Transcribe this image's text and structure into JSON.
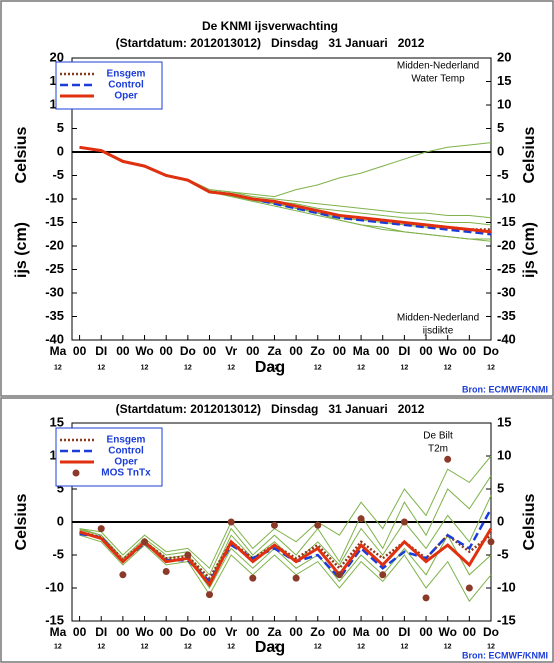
{
  "chart_data": [
    {
      "type": "line",
      "title": "De KNMI ijsverwachting",
      "subtitle": "(Startdatum: 2012013012)   Dinsdag   31 Januari   2012",
      "ylabel": "ijs (cm)",
      "ylabel_extra": "Celsius",
      "y2label": "ijs (cm)",
      "y2label_extra": "Celsius",
      "xlabel": "Dag",
      "annotation_top": [
        "Midden-Nederland",
        "Water Temp"
      ],
      "annotation_bottom": [
        "Midden-Nederland",
        "ijsdikte"
      ],
      "source": "Bron: ECMWF/KNMI",
      "xlim": [
        0.65,
        20
      ],
      "xticks": [
        {
          "value": 0,
          "label": "Ma"
        },
        {
          "value": 1,
          "label": "00"
        },
        {
          "value": 2,
          "label": "DI"
        },
        {
          "value": 3,
          "label": "00"
        },
        {
          "value": 4,
          "label": "Wo"
        },
        {
          "value": 5,
          "label": "00"
        },
        {
          "value": 6,
          "label": "Do"
        },
        {
          "value": 7,
          "label": "00"
        },
        {
          "value": 8,
          "label": "Vr"
        },
        {
          "value": 9,
          "label": "00"
        },
        {
          "value": 10,
          "label": "Za"
        },
        {
          "value": 11,
          "label": "00"
        },
        {
          "value": 12,
          "label": "Zo"
        },
        {
          "value": 13,
          "label": "00"
        },
        {
          "value": 14,
          "label": "Ma"
        },
        {
          "value": 15,
          "label": "00"
        },
        {
          "value": 16,
          "label": "DI"
        },
        {
          "value": 17,
          "label": "00"
        },
        {
          "value": 18,
          "label": "Wo"
        },
        {
          "value": 19,
          "label": "00"
        },
        {
          "value": 20,
          "label": "Do"
        }
      ],
      "x_hour_labels": [
        {
          "value": 0,
          "label": "12"
        },
        {
          "value": 2,
          "label": "12"
        },
        {
          "value": 4,
          "label": "12"
        },
        {
          "value": 6,
          "label": "12"
        },
        {
          "value": 8,
          "label": "12"
        },
        {
          "value": 10,
          "label": "12"
        },
        {
          "value": 12,
          "label": "12"
        },
        {
          "value": 14,
          "label": "12"
        },
        {
          "value": 16,
          "label": "12"
        },
        {
          "value": 18,
          "label": "12"
        },
        {
          "value": 20,
          "label": "12"
        }
      ],
      "ylim": [
        -40,
        20
      ],
      "yticks": [
        20,
        15,
        10,
        5,
        0,
        -5,
        -10,
        -15,
        -20,
        -25,
        -30,
        -35,
        -40
      ],
      "y2lim": [
        -40,
        20
      ],
      "y2ticks": [
        20,
        15,
        10,
        5,
        0,
        -5,
        -10,
        -15,
        -20,
        -25,
        -30,
        -35,
        -40
      ],
      "x": [
        1,
        2,
        3,
        4,
        5,
        6,
        7,
        8,
        9,
        10,
        11,
        12,
        13,
        14,
        15,
        16,
        17,
        18,
        19,
        20
      ],
      "ensemble_color": "#7fb24a",
      "ensemble": [
        [
          1,
          0.3,
          -2,
          -3,
          -5,
          -6,
          -8,
          -8.5,
          -9,
          -9.5,
          -8,
          -7,
          -5.5,
          -4.5,
          -3,
          -1.5,
          0,
          1,
          1.5,
          2
        ],
        [
          1,
          0.3,
          -2.2,
          -3,
          -5,
          -6.2,
          -8.5,
          -9.5,
          -10.5,
          -11.5,
          -12.5,
          -13.5,
          -14.5,
          -15.5,
          -16.5,
          -17,
          -17.5,
          -18,
          -18.5,
          -19
        ],
        [
          1,
          0.3,
          -1.8,
          -2.8,
          -4.8,
          -5.8,
          -8,
          -8.5,
          -9.5,
          -10,
          -10.5,
          -11,
          -11.5,
          -12,
          -12.5,
          -13,
          -13,
          -13.5,
          -13.5,
          -14
        ],
        [
          1,
          0.2,
          -2,
          -3.2,
          -5.2,
          -6,
          -8.7,
          -9.2,
          -10,
          -11,
          -12,
          -13,
          -14,
          -14.5,
          -15,
          -15.5,
          -16,
          -16.2,
          -16.5,
          -16.8
        ],
        [
          1,
          0.3,
          -2,
          -3,
          -5,
          -6,
          -8.3,
          -8.8,
          -9.8,
          -10.5,
          -11,
          -12,
          -12.5,
          -13,
          -13.5,
          -14,
          -14.5,
          -15,
          -15,
          -15.5
        ],
        [
          1,
          0.3,
          -2.1,
          -3.1,
          -5.1,
          -6.1,
          -8.6,
          -9.3,
          -10.3,
          -11,
          -12,
          -13,
          -14.5,
          -15.5,
          -16,
          -17,
          -17.5,
          -18,
          -18.5,
          -18.5
        ]
      ],
      "series": [
        {
          "name": "Ensgem",
          "color": "#8b3a1a",
          "style": "dotted",
          "values": [
            1,
            0.3,
            -2,
            -3,
            -5,
            -6,
            -8.5,
            -9,
            -10,
            -10.5,
            -11.5,
            -12.5,
            -13.5,
            -14,
            -14.5,
            -15,
            -15.5,
            -16,
            -16.5,
            -16.5
          ]
        },
        {
          "name": "Control",
          "color": "#1a3cd8",
          "style": "dashed",
          "values": [
            1,
            0.3,
            -2,
            -3,
            -5,
            -6,
            -8.5,
            -9,
            -10,
            -11,
            -12,
            -13,
            -14,
            -14.5,
            -15,
            -15.5,
            -16,
            -16.5,
            -17,
            -17.5
          ]
        },
        {
          "name": "Oper",
          "color": "#e03010",
          "style": "solid",
          "values": [
            1,
            0.3,
            -2,
            -3,
            -5,
            -6,
            -8.5,
            -9,
            -10,
            -10.5,
            -11.5,
            -12.5,
            -13.5,
            -14,
            -14.5,
            -15,
            -15.5,
            -16,
            -16.5,
            -17
          ]
        }
      ]
    },
    {
      "type": "line",
      "subtitle": "(Startdatum: 2012013012)   Dinsdag   31 Januari   2012",
      "ylabel": "Celsius",
      "y2label": "Celsius",
      "xlabel": "Dag",
      "annotation_top": [
        "De Bilt",
        "T2m"
      ],
      "source": "Bron: ECMWF/KNMI",
      "xlim": [
        0.65,
        20
      ],
      "xticks": [
        {
          "value": 0,
          "label": "Ma"
        },
        {
          "value": 1,
          "label": "00"
        },
        {
          "value": 2,
          "label": "DI"
        },
        {
          "value": 3,
          "label": "00"
        },
        {
          "value": 4,
          "label": "Wo"
        },
        {
          "value": 5,
          "label": "00"
        },
        {
          "value": 6,
          "label": "Do"
        },
        {
          "value": 7,
          "label": "00"
        },
        {
          "value": 8,
          "label": "Vr"
        },
        {
          "value": 9,
          "label": "00"
        },
        {
          "value": 10,
          "label": "Za"
        },
        {
          "value": 11,
          "label": "00"
        },
        {
          "value": 12,
          "label": "Zo"
        },
        {
          "value": 13,
          "label": "00"
        },
        {
          "value": 14,
          "label": "Ma"
        },
        {
          "value": 15,
          "label": "00"
        },
        {
          "value": 16,
          "label": "DI"
        },
        {
          "value": 17,
          "label": "00"
        },
        {
          "value": 18,
          "label": "Wo"
        },
        {
          "value": 19,
          "label": "00"
        },
        {
          "value": 20,
          "label": "Do"
        }
      ],
      "x_hour_labels": [
        {
          "value": 0,
          "label": "12"
        },
        {
          "value": 2,
          "label": "12"
        },
        {
          "value": 4,
          "label": "12"
        },
        {
          "value": 6,
          "label": "12"
        },
        {
          "value": 8,
          "label": "12"
        },
        {
          "value": 10,
          "label": "12"
        },
        {
          "value": 12,
          "label": "12"
        },
        {
          "value": 14,
          "label": "12"
        },
        {
          "value": 16,
          "label": "12"
        },
        {
          "value": 18,
          "label": "12"
        },
        {
          "value": 20,
          "label": "12"
        }
      ],
      "ylim": [
        -15,
        15
      ],
      "yticks": [
        15,
        10,
        5,
        0,
        -5,
        -10,
        -15
      ],
      "y2lim": [
        -15,
        15
      ],
      "y2ticks": [
        15,
        10,
        5,
        0,
        -5,
        -10,
        -15
      ],
      "x": [
        1,
        2,
        3,
        4,
        5,
        6,
        7,
        8,
        9,
        10,
        11,
        12,
        13,
        14,
        15,
        16,
        17,
        18,
        19,
        20
      ],
      "ensemble_color": "#7fb24a",
      "ensemble": [
        [
          -1,
          -2,
          -5.5,
          -2.5,
          -5,
          -4.5,
          -8,
          -1,
          -5,
          -2,
          -5,
          -1,
          -6,
          1,
          -4,
          3,
          -2,
          5,
          2,
          7
        ],
        [
          -1.5,
          -2.5,
          -6,
          -3,
          -6,
          -5.5,
          -10,
          -4,
          -7,
          -4,
          -7,
          -5,
          -9,
          -5,
          -8,
          -4,
          -8,
          -2,
          -8,
          -5
        ],
        [
          -1.2,
          -2,
          -6,
          -2.8,
          -5.5,
          -5,
          -9,
          -2,
          -5.5,
          -3,
          -6,
          -3,
          -6.5,
          -1,
          -5,
          0,
          -4,
          1,
          -3,
          4
        ],
        [
          -2,
          -3,
          -6.5,
          -3.5,
          -6.5,
          -6,
          -11,
          -5,
          -8,
          -5,
          -8,
          -6,
          -10,
          -6,
          -9,
          -5,
          -10,
          -6,
          -12,
          -8
        ],
        [
          -1,
          -1.5,
          -5,
          -2,
          -4.5,
          -4,
          -7,
          0,
          -4,
          -1,
          -3,
          0,
          -2,
          3,
          -1,
          5,
          1,
          8,
          6,
          10
        ]
      ],
      "series": [
        {
          "name": "Ensgem",
          "color": "#8b3a1a",
          "style": "dotted",
          "values": [
            -1.5,
            -2.3,
            -5.7,
            -3,
            -5.5,
            -5.2,
            -8.5,
            -3,
            -5.5,
            -3.5,
            -5.5,
            -3.5,
            -7,
            -3,
            -5.5,
            -3,
            -5.5,
            -2,
            -4.5,
            -2
          ]
        },
        {
          "name": "Control",
          "color": "#1a3cd8",
          "style": "dashed",
          "values": [
            -1.8,
            -2.3,
            -6,
            -3.2,
            -5.8,
            -5.8,
            -9,
            -3.5,
            -5.5,
            -4,
            -6,
            -5,
            -8.5,
            -4,
            -7,
            -4.5,
            -5.5,
            -2,
            -4,
            2
          ]
        },
        {
          "name": "Oper",
          "color": "#e03010",
          "style": "solid",
          "values": [
            -1.5,
            -2.5,
            -6,
            -3,
            -6,
            -5.5,
            -9.5,
            -3,
            -6,
            -3.5,
            -6,
            -4,
            -8,
            -3.5,
            -6.5,
            -3,
            -6,
            -3.5,
            -6.5,
            -1
          ]
        },
        {
          "name": "MOS TnTx",
          "color": "#8b3a2a",
          "style": "marker",
          "x": [
            2,
            3,
            4,
            5,
            6,
            7,
            8,
            9,
            10,
            11,
            12,
            13,
            14,
            15,
            16,
            17,
            18,
            19,
            20
          ],
          "values": [
            -1,
            -8,
            -3,
            -7.5,
            -5,
            -11,
            0,
            -8.5,
            -0.5,
            -8.5,
            -0.5,
            -8,
            0.5,
            -8,
            0,
            -11.5,
            9.5,
            -10,
            -3
          ]
        }
      ]
    }
  ]
}
